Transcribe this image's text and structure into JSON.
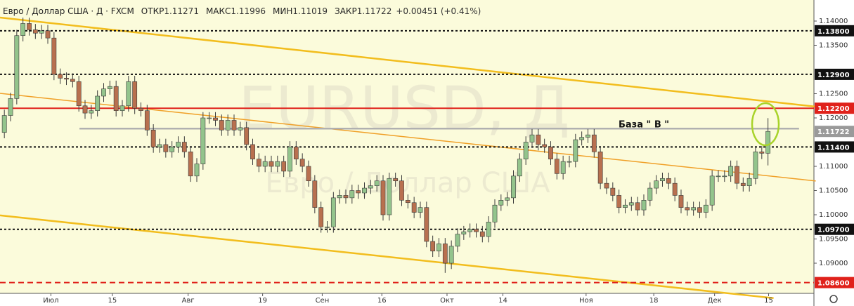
{
  "header": {
    "symbol": "Евро / Доллар США · Д · FXCM",
    "fields": [
      {
        "label": "ОТКР",
        "value": "1.11271"
      },
      {
        "label": "МАКС",
        "value": "1.11996"
      },
      {
        "label": "МИН",
        "value": "1.11019"
      },
      {
        "label": "ЗАКР",
        "value": "1.11722"
      }
    ],
    "change": "+0.00451 (+0.41%)"
  },
  "chart_data": {
    "type": "candlestick",
    "watermark": "EURUSD, Д",
    "watermark_sub": "Евро / Доллар США",
    "annotation": "База \" В \"",
    "up_color": "#93c48c",
    "down_color": "#b8704f",
    "background": "#fbfbdb",
    "xlim": [
      -0.7,
      130.4
    ],
    "ylim": [
      1.08377,
      1.14435
    ],
    "xticks": [
      {
        "value": 7.5,
        "label": "Июл"
      },
      {
        "value": 17.4,
        "label": "15"
      },
      {
        "value": 29.6,
        "label": "Авг"
      },
      {
        "value": 41.6,
        "label": "19"
      },
      {
        "value": 51.2,
        "label": "Сен"
      },
      {
        "value": 60.8,
        "label": "16"
      },
      {
        "value": 71.3,
        "label": "Окт"
      },
      {
        "value": 80.3,
        "label": "14"
      },
      {
        "value": 93.7,
        "label": "Ноя"
      },
      {
        "value": 104.6,
        "label": "18"
      },
      {
        "value": 114.4,
        "label": "Дек"
      },
      {
        "value": 123.1,
        "label": "15"
      }
    ],
    "yticks": [
      {
        "value": 1.14,
        "label": "1.14000"
      },
      {
        "value": 1.135,
        "label": "1.13500"
      },
      {
        "value": 1.125,
        "label": "1.12500"
      },
      {
        "value": 1.12,
        "label": "1.12000"
      },
      {
        "value": 1.11,
        "label": "1.11000"
      },
      {
        "value": 1.105,
        "label": "1.10500"
      },
      {
        "value": 1.1,
        "label": "1.10000"
      },
      {
        "value": 1.095,
        "label": "1.09500"
      },
      {
        "value": 1.09,
        "label": "1.09000"
      }
    ],
    "levels": [
      {
        "value": 1.138,
        "label": "1.13800",
        "color": "#111111",
        "style": "dotted"
      },
      {
        "value": 1.129,
        "label": "1.12900",
        "color": "#111111",
        "style": "dotted"
      },
      {
        "value": 1.122,
        "label": "1.12200",
        "color": "#e0221b",
        "style": "solid"
      },
      {
        "value": 1.114,
        "label": "1.11400",
        "color": "#111111",
        "style": "dotted"
      },
      {
        "value": 1.097,
        "label": "1.09700",
        "color": "#111111",
        "style": "dotted"
      },
      {
        "value": 1.086,
        "label": "1.08600",
        "color": "#e0221b",
        "style": "dashed"
      }
    ],
    "last_price": {
      "value": 1.11722,
      "label": "1.11722",
      "color": "#9a9a9a"
    },
    "trend_lines": [
      {
        "from": [
          -0.7,
          1.14072
        ],
        "to": [
          130.7,
          1.12233
        ],
        "color": "#f2bd1d",
        "width": 2.5
      },
      {
        "from": [
          -0.7,
          1.09988
        ],
        "to": [
          123.9,
          1.08279
        ],
        "color": "#f2bd1d",
        "width": 2.5
      },
      {
        "from": [
          -0.7,
          1.12508
        ],
        "to": [
          130.7,
          1.10698
        ],
        "color": "#f0a028",
        "width": 1.5
      },
      {
        "from": [
          12.1,
          1.1178
        ],
        "to": [
          128,
          1.1178
        ],
        "color": "#b0b0b0",
        "width": 2.5
      }
    ],
    "candles": [
      [
        1.117,
        1.1217,
        1.1158,
        1.1205
      ],
      [
        1.1205,
        1.1252,
        1.1193,
        1.124
      ],
      [
        1.124,
        1.1382,
        1.1228,
        1.137
      ],
      [
        1.137,
        1.1407,
        1.1358,
        1.1395
      ],
      [
        1.1395,
        1.1407,
        1.137,
        1.1382
      ],
      [
        1.1382,
        1.1394,
        1.1363,
        1.1375
      ],
      [
        1.1375,
        1.1392,
        1.1363,
        1.138
      ],
      [
        1.138,
        1.1392,
        1.1353,
        1.1365
      ],
      [
        1.1365,
        1.1377,
        1.1278,
        1.129
      ],
      [
        1.129,
        1.1302,
        1.127,
        1.1282
      ],
      [
        1.1282,
        1.1294,
        1.1268,
        1.128
      ],
      [
        1.128,
        1.1292,
        1.1263,
        1.1275
      ],
      [
        1.1275,
        1.1287,
        1.1213,
        1.1225
      ],
      [
        1.1225,
        1.1237,
        1.1198,
        1.121
      ],
      [
        1.121,
        1.1227,
        1.1198,
        1.1215
      ],
      [
        1.1215,
        1.1257,
        1.1203,
        1.1245
      ],
      [
        1.1245,
        1.1272,
        1.1233,
        1.126
      ],
      [
        1.126,
        1.1277,
        1.1248,
        1.1265
      ],
      [
        1.1265,
        1.1277,
        1.1203,
        1.1215
      ],
      [
        1.1215,
        1.1237,
        1.1203,
        1.1225
      ],
      [
        1.1225,
        1.1287,
        1.1213,
        1.1275
      ],
      [
        1.1275,
        1.1287,
        1.1208,
        1.122
      ],
      [
        1.122,
        1.1232,
        1.1203,
        1.1215
      ],
      [
        1.1215,
        1.1227,
        1.1163,
        1.1175
      ],
      [
        1.1175,
        1.1187,
        1.1128,
        1.114
      ],
      [
        1.114,
        1.1157,
        1.1128,
        1.1145
      ],
      [
        1.1145,
        1.1157,
        1.1118,
        1.113
      ],
      [
        1.113,
        1.1152,
        1.1118,
        1.114
      ],
      [
        1.114,
        1.1162,
        1.1128,
        1.115
      ],
      [
        1.115,
        1.1162,
        1.1118,
        1.113
      ],
      [
        1.113,
        1.1142,
        1.1068,
        1.108
      ],
      [
        1.108,
        1.1117,
        1.1068,
        1.1105
      ],
      [
        1.1105,
        1.1212,
        1.1093,
        1.12
      ],
      [
        1.12,
        1.1212,
        1.1188,
        1.12
      ],
      [
        1.12,
        1.1212,
        1.1183,
        1.1195
      ],
      [
        1.1195,
        1.1207,
        1.1163,
        1.1175
      ],
      [
        1.1175,
        1.1207,
        1.1163,
        1.1195
      ],
      [
        1.1195,
        1.1207,
        1.1163,
        1.1175
      ],
      [
        1.1175,
        1.1192,
        1.1163,
        1.118
      ],
      [
        1.118,
        1.1192,
        1.1133,
        1.1145
      ],
      [
        1.1145,
        1.1157,
        1.1103,
        1.1115
      ],
      [
        1.1115,
        1.1127,
        1.1088,
        1.11
      ],
      [
        1.11,
        1.1122,
        1.1088,
        1.111
      ],
      [
        1.111,
        1.1122,
        1.1088,
        1.11
      ],
      [
        1.11,
        1.1122,
        1.1088,
        1.111
      ],
      [
        1.111,
        1.1122,
        1.1078,
        1.109
      ],
      [
        1.109,
        1.1152,
        1.1078,
        1.114
      ],
      [
        1.114,
        1.1152,
        1.1103,
        1.1115
      ],
      [
        1.1115,
        1.1127,
        1.1088,
        1.11
      ],
      [
        1.11,
        1.1112,
        1.1058,
        1.107
      ],
      [
        1.107,
        1.1082,
        1.1003,
        1.1015
      ],
      [
        1.1015,
        1.1027,
        1.0963,
        1.0975
      ],
      [
        1.0975,
        1.0987,
        1.0963,
        1.0975
      ],
      [
        1.0975,
        1.1047,
        1.0963,
        1.1035
      ],
      [
        1.1035,
        1.1052,
        1.1023,
        1.104
      ],
      [
        1.104,
        1.1052,
        1.1023,
        1.1035
      ],
      [
        1.1035,
        1.1062,
        1.1023,
        1.105
      ],
      [
        1.105,
        1.1062,
        1.1033,
        1.1045
      ],
      [
        1.1045,
        1.1067,
        1.1033,
        1.1055
      ],
      [
        1.1055,
        1.1072,
        1.1043,
        1.106
      ],
      [
        1.106,
        1.1082,
        1.1048,
        1.107
      ],
      [
        1.107,
        1.1082,
        1.0988,
        1.1
      ],
      [
        1.1,
        1.1087,
        1.0988,
        1.1075
      ],
      [
        1.1075,
        1.1087,
        1.1058,
        1.107
      ],
      [
        1.107,
        1.1082,
        1.1018,
        1.103
      ],
      [
        1.103,
        1.1042,
        1.1013,
        1.1025
      ],
      [
        1.1025,
        1.1037,
        1.0993,
        1.1005
      ],
      [
        1.1005,
        1.1027,
        1.0993,
        1.1015
      ],
      [
        1.1015,
        1.1027,
        1.0933,
        1.0945
      ],
      [
        1.0945,
        1.0957,
        1.0913,
        1.0925
      ],
      [
        1.0925,
        1.0952,
        1.0913,
        1.094
      ],
      [
        1.094,
        1.0952,
        1.088,
        1.09
      ],
      [
        1.09,
        1.0947,
        1.0888,
        1.0935
      ],
      [
        1.0935,
        1.0972,
        1.0923,
        1.096
      ],
      [
        1.096,
        1.0977,
        1.0948,
        1.0965
      ],
      [
        1.0965,
        1.0982,
        1.0953,
        1.097
      ],
      [
        1.097,
        1.0982,
        1.0953,
        1.0965
      ],
      [
        1.0965,
        1.0977,
        1.0943,
        1.0955
      ],
      [
        1.0955,
        1.0997,
        1.0943,
        1.0985
      ],
      [
        1.0985,
        1.1032,
        1.0973,
        1.102
      ],
      [
        1.102,
        1.1042,
        1.1008,
        1.103
      ],
      [
        1.103,
        1.1047,
        1.1018,
        1.1035
      ],
      [
        1.1035,
        1.1092,
        1.1023,
        1.108
      ],
      [
        1.108,
        1.1127,
        1.1068,
        1.1115
      ],
      [
        1.1115,
        1.1162,
        1.1103,
        1.115
      ],
      [
        1.115,
        1.1177,
        1.1138,
        1.1165
      ],
      [
        1.1165,
        1.1177,
        1.1133,
        1.1145
      ],
      [
        1.1145,
        1.1157,
        1.1128,
        1.114
      ],
      [
        1.114,
        1.1152,
        1.1103,
        1.1115
      ],
      [
        1.1115,
        1.1127,
        1.1073,
        1.1085
      ],
      [
        1.1085,
        1.1122,
        1.1073,
        1.111
      ],
      [
        1.111,
        1.1122,
        1.1098,
        1.111
      ],
      [
        1.111,
        1.1167,
        1.1098,
        1.1155
      ],
      [
        1.1155,
        1.1172,
        1.1143,
        1.116
      ],
      [
        1.116,
        1.1177,
        1.1148,
        1.1165
      ],
      [
        1.1165,
        1.1177,
        1.1118,
        1.113
      ],
      [
        1.113,
        1.1142,
        1.1053,
        1.1065
      ],
      [
        1.1065,
        1.1077,
        1.1043,
        1.1055
      ],
      [
        1.1055,
        1.1067,
        1.1028,
        1.104
      ],
      [
        1.104,
        1.1052,
        1.1003,
        1.1015
      ],
      [
        1.1015,
        1.1032,
        1.1003,
        1.102
      ],
      [
        1.102,
        1.1037,
        1.1008,
        1.1025
      ],
      [
        1.1025,
        1.1037,
        1.0998,
        1.101
      ],
      [
        1.101,
        1.1042,
        1.0998,
        1.103
      ],
      [
        1.103,
        1.1067,
        1.1018,
        1.1055
      ],
      [
        1.1055,
        1.1082,
        1.1043,
        1.107
      ],
      [
        1.107,
        1.1087,
        1.1058,
        1.1075
      ],
      [
        1.1075,
        1.1087,
        1.1053,
        1.1065
      ],
      [
        1.1065,
        1.1077,
        1.1028,
        1.104
      ],
      [
        1.104,
        1.1052,
        1.1003,
        1.1015
      ],
      [
        1.1015,
        1.1027,
        1.0998,
        1.101
      ],
      [
        1.101,
        1.1027,
        1.0998,
        1.1015
      ],
      [
        1.1015,
        1.1027,
        1.0993,
        1.1005
      ],
      [
        1.1005,
        1.1032,
        1.0993,
        1.102
      ],
      [
        1.102,
        1.1092,
        1.1008,
        1.108
      ],
      [
        1.108,
        1.1092,
        1.1068,
        1.108
      ],
      [
        1.108,
        1.1092,
        1.1068,
        1.108
      ],
      [
        1.108,
        1.1112,
        1.1068,
        1.11
      ],
      [
        1.11,
        1.1112,
        1.1053,
        1.1065
      ],
      [
        1.1065,
        1.1077,
        1.1048,
        1.106
      ],
      [
        1.106,
        1.1087,
        1.1048,
        1.1075
      ],
      [
        1.1075,
        1.1142,
        1.1063,
        1.113
      ],
      [
        1.113,
        1.1142,
        1.1115,
        1.1127
      ],
      [
        1.11271,
        1.11996,
        1.11019,
        1.11722
      ]
    ]
  }
}
